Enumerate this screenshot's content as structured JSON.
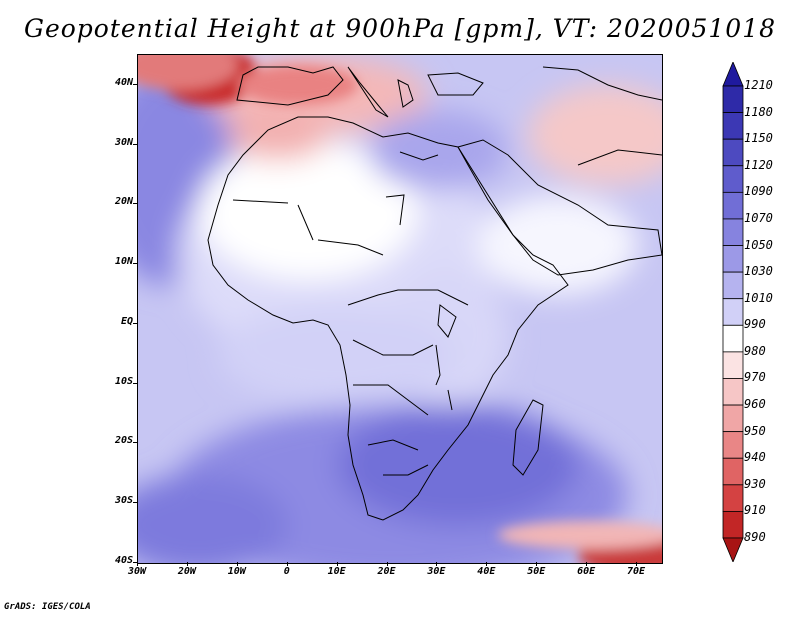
{
  "title": "Geopotential Height at 900hPa [gpm], VT: 2020051018",
  "credit": "GrADS: IGES/COLA",
  "map": {
    "field": "Geopotential Height",
    "level": "900hPa",
    "units": "gpm",
    "valid_time": "2020051018",
    "lat_range": [
      -40,
      45
    ],
    "lon_range": [
      -30,
      75
    ],
    "lat_labels": [
      {
        "value": 40,
        "text": "40N"
      },
      {
        "value": 30,
        "text": "30N"
      },
      {
        "value": 20,
        "text": "20N"
      },
      {
        "value": 10,
        "text": "10N"
      },
      {
        "value": 0,
        "text": "EQ"
      },
      {
        "value": -10,
        "text": "10S"
      },
      {
        "value": -20,
        "text": "20S"
      },
      {
        "value": -30,
        "text": "30S"
      },
      {
        "value": -40,
        "text": "40S"
      }
    ],
    "lon_labels": [
      {
        "value": -30,
        "text": "30W"
      },
      {
        "value": -20,
        "text": "20W"
      },
      {
        "value": -10,
        "text": "10W"
      },
      {
        "value": 0,
        "text": "0"
      },
      {
        "value": 10,
        "text": "10E"
      },
      {
        "value": 20,
        "text": "20E"
      },
      {
        "value": 30,
        "text": "30E"
      },
      {
        "value": 40,
        "text": "40E"
      },
      {
        "value": 50,
        "text": "50E"
      },
      {
        "value": 60,
        "text": "60E"
      },
      {
        "value": 70,
        "text": "70E"
      }
    ]
  },
  "colorbar": {
    "levels": [
      "1210",
      "1180",
      "1150",
      "1120",
      "1090",
      "1070",
      "1050",
      "1030",
      "1010",
      "990",
      "980",
      "970",
      "960",
      "950",
      "940",
      "930",
      "910",
      "890"
    ],
    "colors": [
      "#1f1a9e",
      "#2e2aa8",
      "#3c38b4",
      "#4d4ac0",
      "#5f5ccc",
      "#716ed6",
      "#8683df",
      "#9c99e7",
      "#b5b3ef",
      "#d1d0f7",
      "#ffffff",
      "#fbe3e3",
      "#f6c6c6",
      "#f0a6a6",
      "#e98686",
      "#e06464",
      "#d44242",
      "#c22626",
      "#a81414"
    ]
  }
}
